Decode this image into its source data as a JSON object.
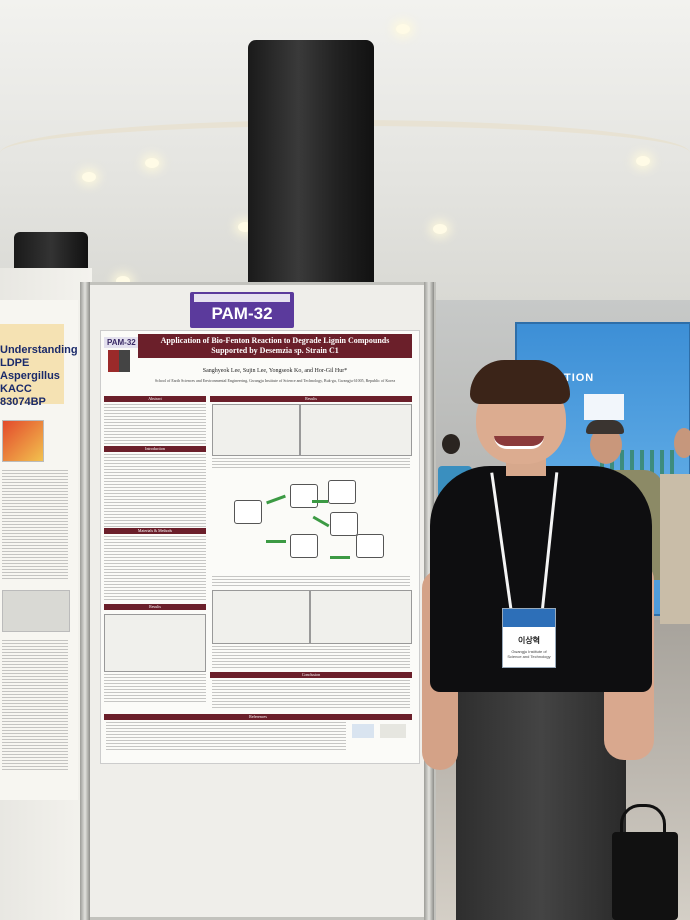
{
  "scene": {
    "board_number": "PAM-32",
    "poster": {
      "code": "PAM-32",
      "title": "Application of Bio-Fenton Reaction to Degrade Lignin Compounds Supported by Desemzia sp. Strain C1",
      "authors": "Sanghyeok Lee, Sujin Lee, Yongseok Ko, and Hor-Gil Hur*",
      "affiliation": "School of Earth Sciences and Environmental Engineering, Gwangju Institute of Science and Technology, Buk-gu, Gwangju 61005, Republic of Korea",
      "sections": {
        "abstract": "Abstract",
        "introduction": "Introduction",
        "materials": "Materials & Methods",
        "results": "Results",
        "results_right": "Results",
        "conclusion": "Conclusion",
        "references": "References"
      }
    },
    "left_poster_title": "Understanding LDPE Aspergillus KACC 83074BP",
    "badge": {
      "name": "이상혁",
      "affiliation": "Gwangju Institute of Science and Technology"
    },
    "banner_text": "NTATION"
  },
  "colors": {
    "poster_accent": "#6b1f2a",
    "board_label": "#5b3a9c",
    "banner_blue": "#4f9ad9"
  }
}
